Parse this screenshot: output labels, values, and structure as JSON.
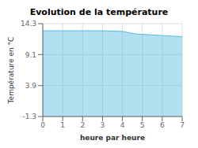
{
  "chart_data": {
    "type": "area",
    "title": "Evolution de la température",
    "xlabel": "heure par heure",
    "ylabel": "Température en °C",
    "x": [
      0,
      0.5,
      1,
      2,
      3,
      4,
      4.3,
      4.7,
      5,
      5.5,
      6,
      6.5,
      7
    ],
    "values": [
      13.1,
      13.1,
      13.1,
      13.1,
      13.1,
      13.0,
      12.8,
      12.55,
      12.5,
      12.4,
      12.3,
      12.2,
      12.1
    ],
    "color": "#55bbdd",
    "xlim": [
      0,
      7
    ],
    "ylim": [
      -1.3,
      14.3
    ],
    "xticks": [
      0,
      1,
      2,
      3,
      4,
      5,
      6,
      7
    ],
    "yticks": [
      -1.3,
      3.9,
      9.1,
      14.3
    ],
    "grid": true
  }
}
